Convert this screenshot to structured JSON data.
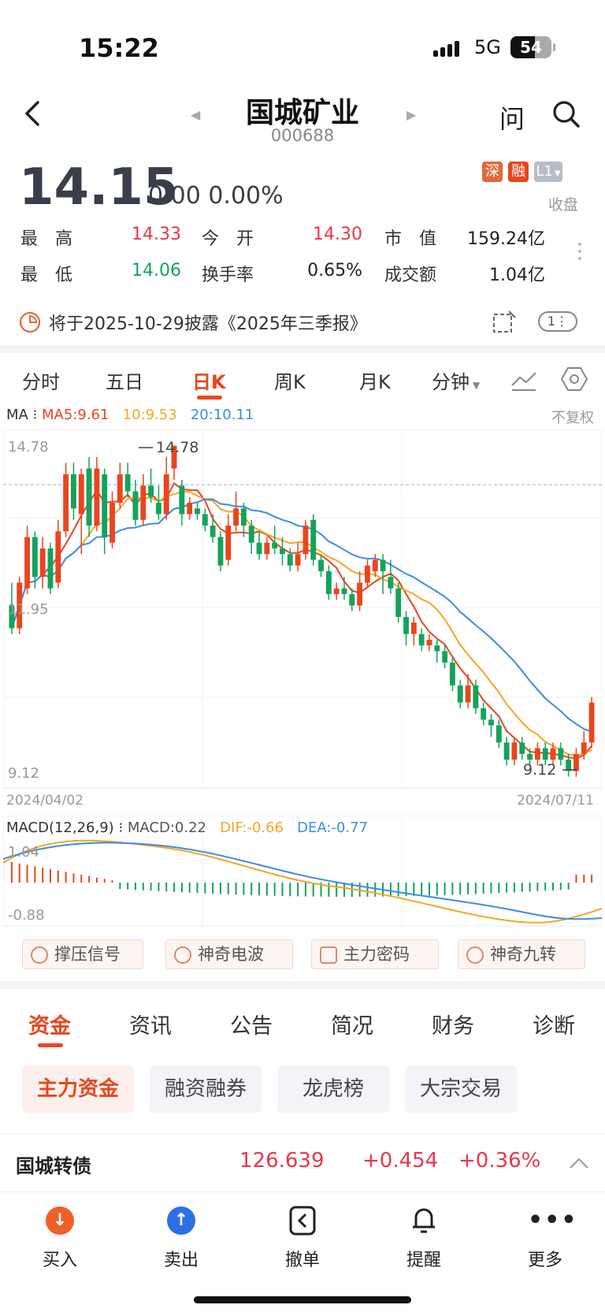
{
  "status_bar": {
    "time": "15:22",
    "network": "5G",
    "battery": "54"
  },
  "header": {
    "name": "国城矿业",
    "code": "000688",
    "ask_label": "问"
  },
  "quote": {
    "price": "14.15",
    "change": "0.00 0.00%",
    "tags": [
      {
        "label": "深",
        "color": "#e06a3c"
      },
      {
        "label": "融",
        "color": "#e8461e"
      },
      {
        "label": "L1",
        "color": "#b8bcc6"
      }
    ],
    "close_status": "收盘",
    "rows": [
      [
        {
          "label": "最　高",
          "value": "14.33",
          "color": "#e8364a"
        },
        {
          "label": "今　开",
          "value": "14.30",
          "color": "#e8364a"
        },
        {
          "label": "市　值",
          "value": "159.24亿",
          "color": "#222222"
        }
      ],
      [
        {
          "label": "最　低",
          "value": "14.06",
          "color": "#13a35c"
        },
        {
          "label": "换手率",
          "value": "0.65%",
          "color": "#222222"
        },
        {
          "label": "成交额",
          "value": "1.04亿",
          "color": "#222222"
        }
      ]
    ]
  },
  "notice": {
    "text": "将于2025-10-29披露《2025年三季报》",
    "badge": "1"
  },
  "chart_tabs": [
    "分时",
    "五日",
    "日K",
    "周K",
    "月K",
    "分钟"
  ],
  "active_chart_tab": "日K",
  "ma_legend": {
    "label": "MA",
    "ma5": "MA5:9.61",
    "ma10": "10:9.53",
    "ma20": "20:10.11",
    "adjust": "不复权"
  },
  "kline_axis": {
    "top": "14.78",
    "mid": "11.95",
    "bottom": "9.12",
    "max_label": "14.78",
    "min_label": "9.12",
    "start_date": "2024/04/02",
    "end_date": "2024/07/11"
  },
  "macd_legend": {
    "label": "MACD(12,26,9)",
    "macd": "MACD:0.22",
    "dif": "DIF:-0.66",
    "dea": "DEA:-0.77",
    "top": "1.04",
    "bottom": "-0.88"
  },
  "signal_buttons": [
    "撑压信号",
    "神奇电波",
    "主力密码",
    "神奇九转"
  ],
  "fund_tabs": [
    "资金",
    "资讯",
    "公告",
    "简况",
    "财务",
    "诊断"
  ],
  "active_fund_tab": "资金",
  "sub_tabs": [
    "主力资金",
    "融资融券",
    "龙虎榜",
    "大宗交易"
  ],
  "bond": {
    "name": "国城转债",
    "price": "126.639",
    "change": "+0.454",
    "pct": "+0.36%"
  },
  "bottom_bar": [
    {
      "label": "买入",
      "icon": "arrow-down-icon",
      "color": "#f06028"
    },
    {
      "label": "卖出",
      "icon": "arrow-up-icon",
      "color": "#2f6fe6"
    },
    {
      "label": "撤单",
      "icon": "cancel-order-icon",
      "color": "#222222"
    },
    {
      "label": "提醒",
      "icon": "bell-icon",
      "color": "#222222"
    },
    {
      "label": "更多",
      "icon": "more-icon",
      "color": "#222222"
    }
  ],
  "colors": {
    "up": "#e8461e",
    "down": "#13a35c",
    "accent": "#e8461e",
    "ma5": "#e8461e",
    "ma10": "#f5a623",
    "ma20": "#3c8ce7"
  },
  "chart_data": {
    "type": "candlestick",
    "ylim": [
      9.12,
      14.78
    ],
    "candles": [
      [
        12.0,
        11.6,
        12.4,
        11.5
      ],
      [
        11.6,
        12.4,
        12.5,
        11.5
      ],
      [
        12.3,
        13.2,
        13.4,
        12.2
      ],
      [
        13.2,
        12.5,
        13.3,
        12.3
      ],
      [
        12.5,
        13.0,
        13.2,
        12.3
      ],
      [
        13.0,
        12.3,
        13.1,
        12.2
      ],
      [
        12.4,
        13.3,
        13.5,
        12.3
      ],
      [
        13.3,
        14.3,
        14.5,
        13.2
      ],
      [
        14.3,
        13.7,
        14.5,
        13.5
      ],
      [
        13.6,
        14.3,
        14.4,
        12.9
      ],
      [
        14.4,
        13.4,
        14.6,
        13.2
      ],
      [
        13.4,
        14.4,
        14.6,
        13.3
      ],
      [
        14.3,
        13.2,
        14.4,
        12.9
      ],
      [
        13.1,
        13.8,
        14.0,
        13.0
      ],
      [
        13.8,
        14.3,
        14.5,
        13.7
      ],
      [
        14.3,
        14.0,
        14.5,
        13.9
      ],
      [
        14.0,
        13.5,
        14.2,
        13.4
      ],
      [
        13.5,
        14.1,
        14.3,
        13.4
      ],
      [
        14.1,
        13.9,
        14.4,
        13.8
      ],
      [
        13.8,
        13.6,
        14.1,
        13.5
      ],
      [
        13.6,
        14.3,
        14.6,
        13.5
      ],
      [
        14.4,
        14.8,
        14.8,
        14.2
      ],
      [
        14.1,
        13.6,
        14.2,
        13.4
      ],
      [
        13.6,
        13.8,
        13.9,
        13.5
      ],
      [
        13.7,
        13.6,
        13.8,
        13.5
      ],
      [
        13.6,
        13.4,
        13.7,
        13.3
      ],
      [
        13.4,
        13.2,
        13.6,
        13.1
      ],
      [
        13.2,
        12.7,
        13.3,
        12.6
      ],
      [
        12.8,
        13.4,
        13.6,
        12.7
      ],
      [
        13.4,
        13.7,
        14.0,
        13.3
      ],
      [
        13.7,
        13.4,
        13.8,
        13.2
      ],
      [
        13.4,
        13.1,
        13.5,
        12.9
      ],
      [
        13.1,
        12.9,
        13.3,
        12.8
      ],
      [
        12.9,
        13.1,
        13.2,
        12.8
      ],
      [
        13.1,
        13.0,
        13.4,
        12.9
      ],
      [
        13.0,
        12.9,
        13.2,
        12.7
      ],
      [
        12.9,
        12.7,
        13.0,
        12.6
      ],
      [
        12.7,
        12.9,
        13.1,
        12.6
      ],
      [
        12.9,
        13.4,
        13.5,
        12.8
      ],
      [
        13.5,
        12.8,
        13.6,
        12.7
      ],
      [
        12.8,
        12.6,
        12.9,
        12.5
      ],
      [
        12.6,
        12.2,
        12.7,
        12.1
      ],
      [
        12.2,
        12.3,
        12.4,
        12.1
      ],
      [
        12.3,
        12.2,
        12.5,
        12.1
      ],
      [
        12.2,
        12.0,
        12.3,
        11.9
      ],
      [
        12.0,
        12.4,
        12.6,
        11.9
      ],
      [
        12.4,
        12.7,
        12.8,
        12.3
      ],
      [
        12.6,
        12.8,
        12.9,
        12.5
      ],
      [
        12.8,
        12.6,
        12.9,
        12.2
      ],
      [
        12.5,
        12.3,
        12.8,
        12.2
      ],
      [
        12.3,
        11.8,
        12.4,
        11.7
      ],
      [
        11.8,
        11.5,
        11.9,
        11.3
      ],
      [
        11.5,
        11.7,
        11.8,
        11.3
      ],
      [
        11.5,
        11.3,
        11.6,
        11.2
      ],
      [
        11.3,
        11.4,
        11.5,
        11.2
      ],
      [
        11.3,
        11.2,
        11.4,
        11.0
      ],
      [
        11.2,
        11.0,
        11.3,
        10.9
      ],
      [
        11.0,
        10.6,
        11.1,
        10.5
      ],
      [
        10.6,
        10.3,
        10.7,
        10.2
      ],
      [
        10.3,
        10.6,
        10.8,
        10.2
      ],
      [
        10.6,
        10.2,
        10.7,
        10.1
      ],
      [
        10.2,
        10.0,
        10.3,
        9.9
      ],
      [
        10.0,
        9.9,
        10.1,
        9.7
      ],
      [
        9.9,
        9.6,
        10.0,
        9.5
      ],
      [
        9.6,
        9.3,
        9.7,
        9.2
      ],
      [
        9.3,
        9.6,
        9.7,
        9.2
      ],
      [
        9.6,
        9.4,
        9.7,
        9.3
      ],
      [
        9.4,
        9.3,
        9.5,
        9.2
      ],
      [
        9.3,
        9.5,
        9.6,
        9.2
      ],
      [
        9.5,
        9.3,
        9.6,
        9.2
      ],
      [
        9.3,
        9.5,
        9.6,
        9.2
      ],
      [
        9.5,
        9.3,
        9.6,
        9.2
      ],
      [
        9.3,
        9.1,
        9.4,
        9.0
      ],
      [
        9.1,
        9.4,
        9.5,
        9.0
      ],
      [
        9.4,
        9.6,
        9.8,
        9.3
      ],
      [
        9.6,
        10.3,
        10.4,
        9.5
      ]
    ],
    "macd_ylim": [
      -0.88,
      1.04
    ]
  }
}
